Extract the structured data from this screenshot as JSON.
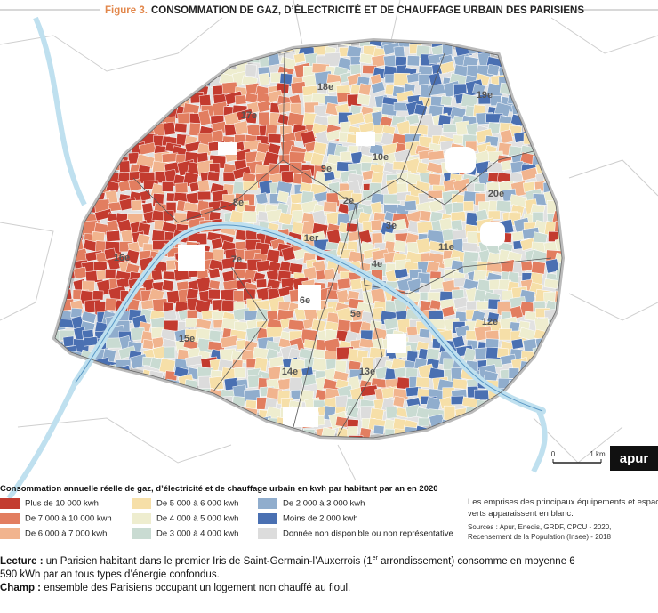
{
  "figure": {
    "label": "Figure 3.",
    "title": "CONSOMMATION DE GAZ, D’ÉLECTRICITÉ ET DE CHAUFFAGE URBAIN DES PARISIENS"
  },
  "map": {
    "arrondissements": [
      "18e",
      "19e",
      "17e",
      "10e",
      "9e",
      "20e",
      "8e",
      "2e",
      "3e",
      "1er",
      "11e",
      "16e",
      "7e",
      "4e",
      "6e",
      "5e",
      "12e",
      "15e",
      "14e",
      "13e"
    ],
    "scale": {
      "zero": "0",
      "length": "1 km"
    },
    "logo": "apur"
  },
  "legend": {
    "title": "Consommation annuelle réelle de gaz, d’électricité et de chauffage urbain en kwh par habitant par an en 2020",
    "items": [
      {
        "label": "Plus de 10 000  kwh",
        "color": "#c33b2f"
      },
      {
        "label": "De 7 000 à 10 000 kwh",
        "color": "#e27e60"
      },
      {
        "label": "De 6 000 à 7 000 kwh",
        "color": "#f1b48e"
      },
      {
        "label": "De 5 000 à 6 000 kwh",
        "color": "#f6dfa8"
      },
      {
        "label": "De 4 000 à 5 000 kwh",
        "color": "#eeedcf"
      },
      {
        "label": "De 3 000 à 4 000 kwh",
        "color": "#c9dbd2"
      },
      {
        "label": "De 2 000 à 3 000 kwh",
        "color": "#90adcd"
      },
      {
        "label": "Moins de 2 000 kwh",
        "color": "#4a70b2"
      },
      {
        "label": "Donnée non disponible ou non représentative",
        "color": "#dcdcdc"
      }
    ]
  },
  "notes": {
    "blank": [
      "Les emprises des principaux équipements et espaces",
      "verts apparaissent en blanc."
    ],
    "sources": [
      "Sources : Apur, Enedis, GRDF, CPCU - 2020,",
      "Recensement de la Population (Insee) - 2018"
    ]
  },
  "reading": {
    "lecture_label": "Lecture :",
    "lecture_a": " un Parisien habitant dans le premier Iris de Saint-Germain-l’Auxerrois (1",
    "lecture_sup": "er",
    "lecture_b": " arrondissement) consomme en moyenne 6 590 kWh par an tous types d’énergie confondus.",
    "champ_label": "Champ :",
    "champ": " ensemble des Parisiens occupant un logement non chauffé au fioul."
  }
}
